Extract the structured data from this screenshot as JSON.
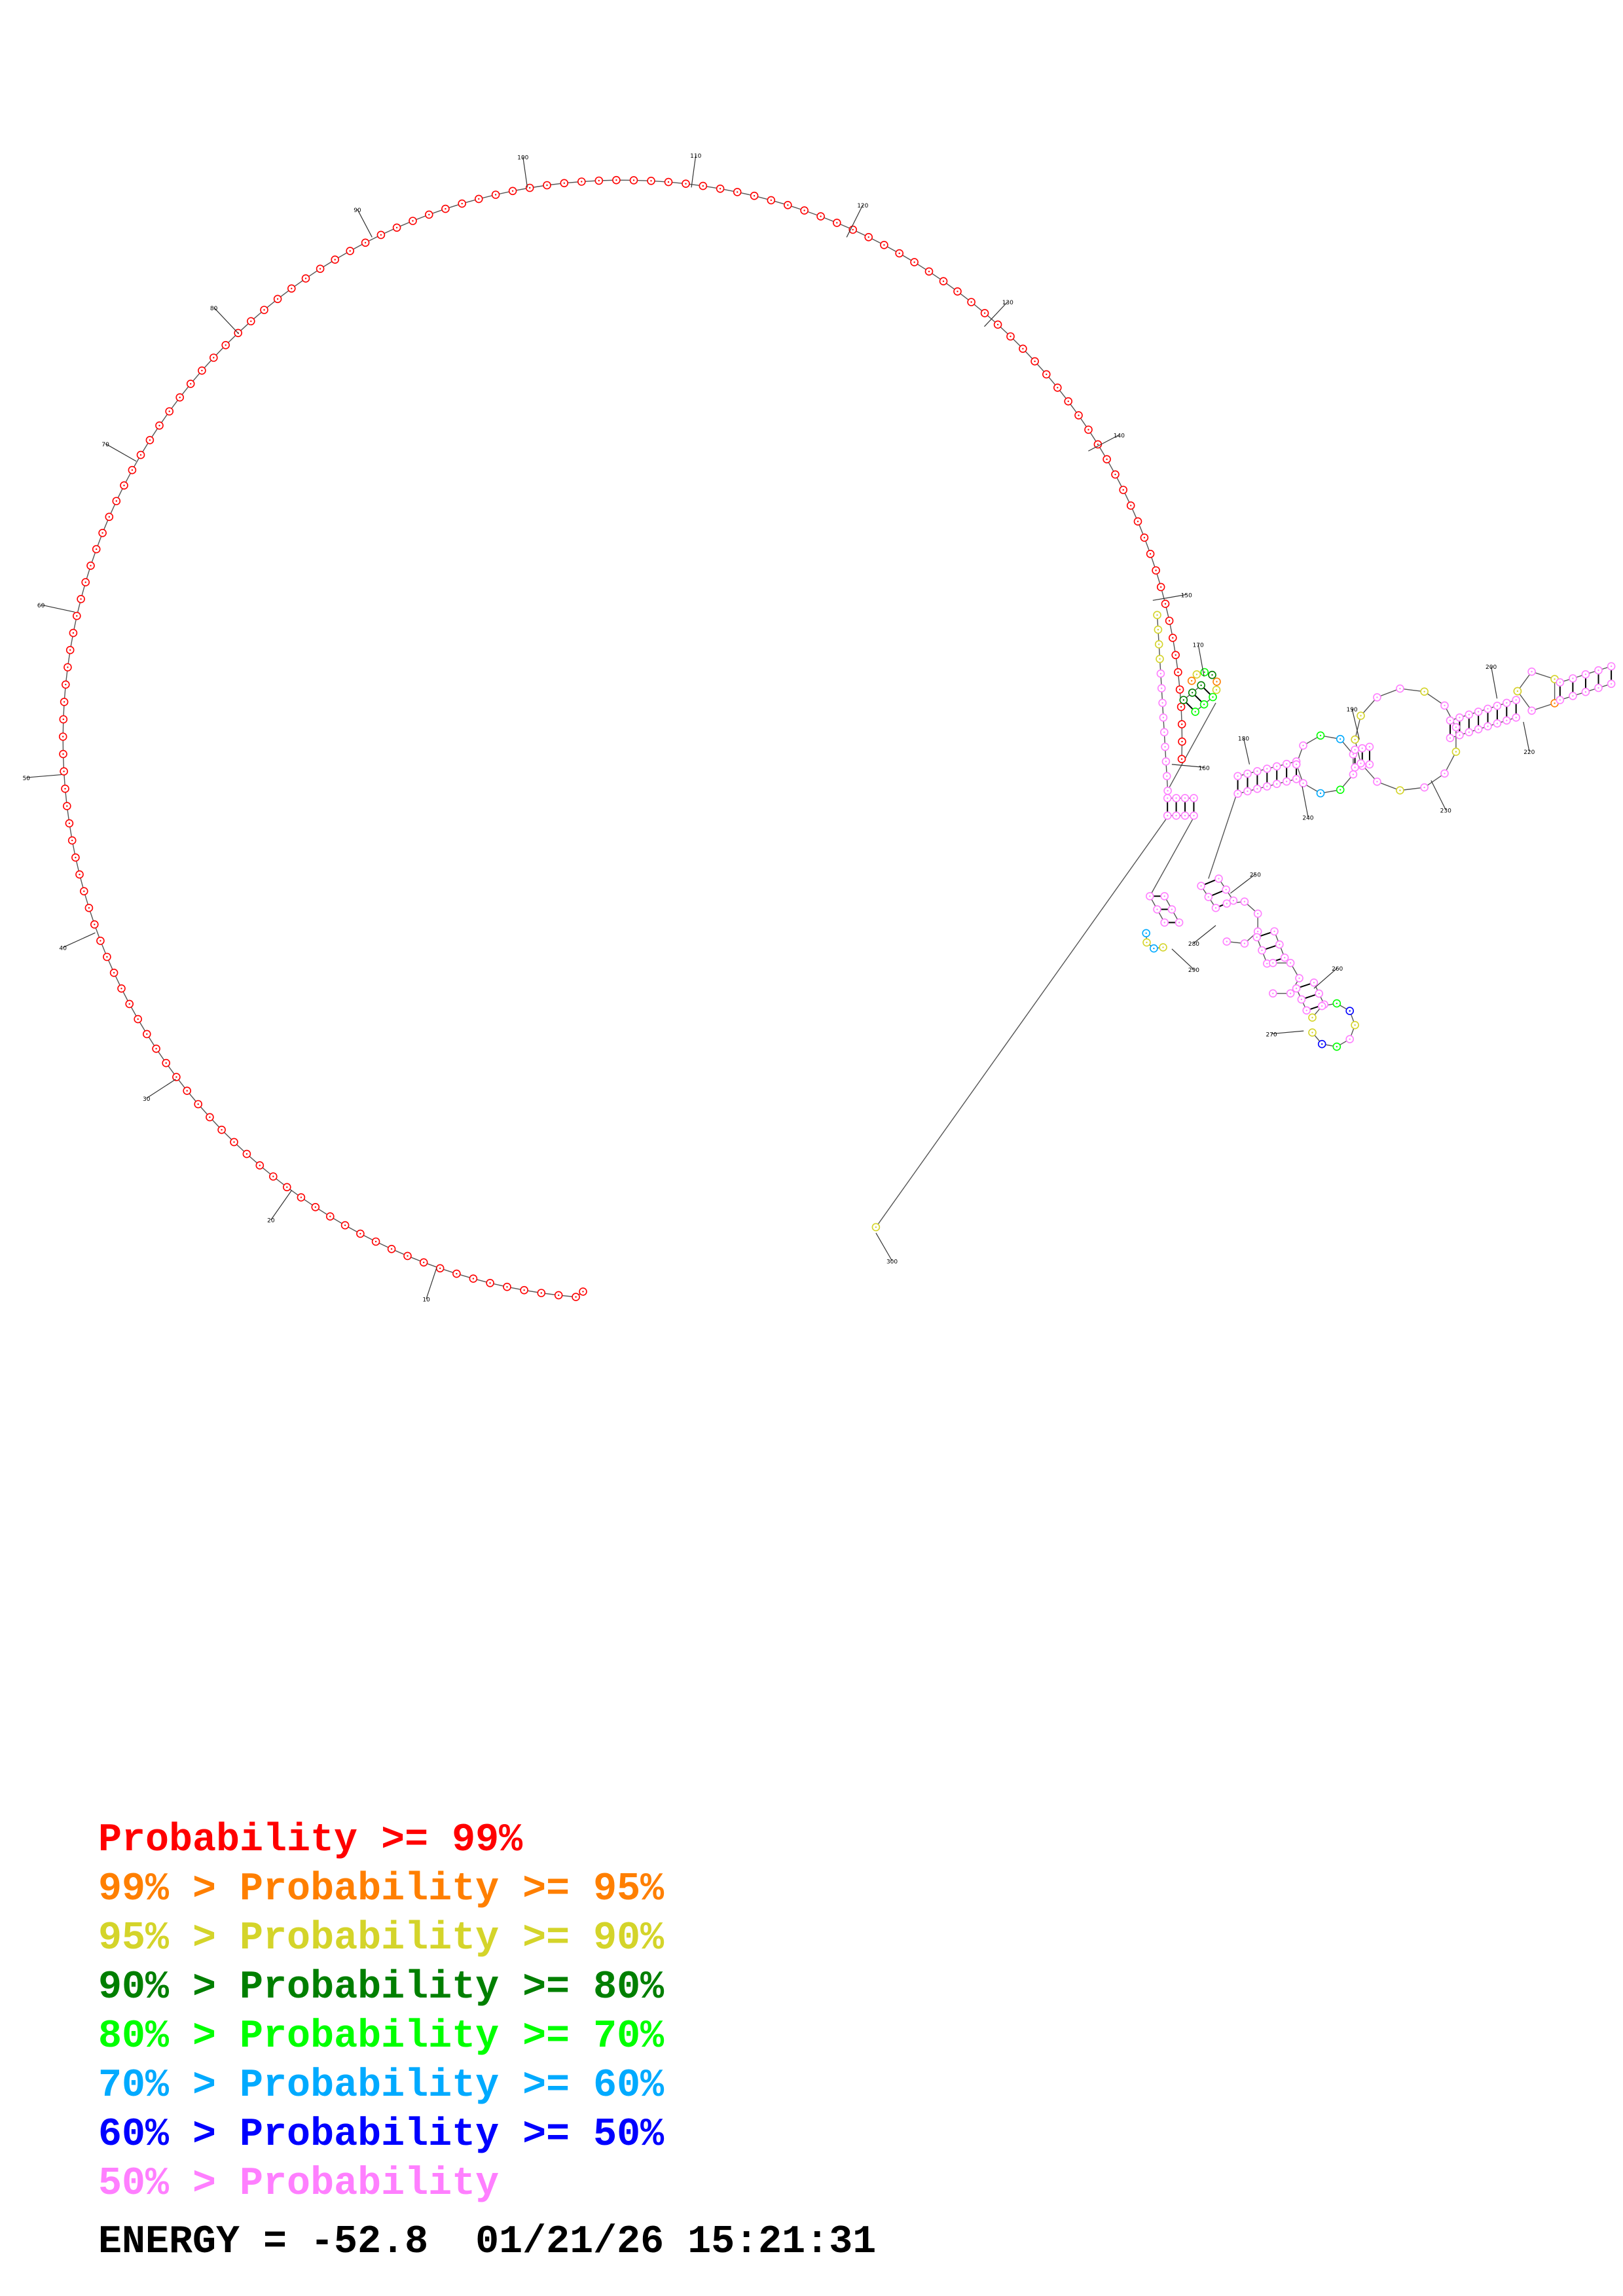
{
  "diagram": {
    "index_labels": [
      "10",
      "20",
      "30",
      "40",
      "50",
      "60",
      "70",
      "80",
      "90",
      "100",
      "110",
      "120",
      "130",
      "140",
      "150",
      "160",
      "170",
      "180",
      "190",
      "200",
      "220",
      "230",
      "240",
      "250",
      "260",
      "270",
      "280",
      "290",
      "300"
    ]
  },
  "legend": [
    {
      "prefix": "",
      "text": "Probability >= 99%",
      "color": "#ff0000"
    },
    {
      "prefix": "99% > ",
      "text": "Probability >= 95%",
      "color": "#ff7f00"
    },
    {
      "prefix": "95% > ",
      "text": "Probability >= 90%",
      "color": "#d4d42a"
    },
    {
      "prefix": "90% > ",
      "text": "Probability >= 80%",
      "color": "#007f00"
    },
    {
      "prefix": "80% > ",
      "text": "Probability >= 70%",
      "color": "#00ff00"
    },
    {
      "prefix": "70% > ",
      "text": "Probability >= 60%",
      "color": "#00aaff"
    },
    {
      "prefix": "60% > ",
      "text": "Probability >= 50%",
      "color": "#0000ff"
    },
    {
      "prefix": "50% > ",
      "text": "Probability",
      "color": "#ff7fff"
    }
  ],
  "footer": {
    "energy": "ENERGY = -52.8",
    "datetime": "01/21/26 15:21:31"
  }
}
